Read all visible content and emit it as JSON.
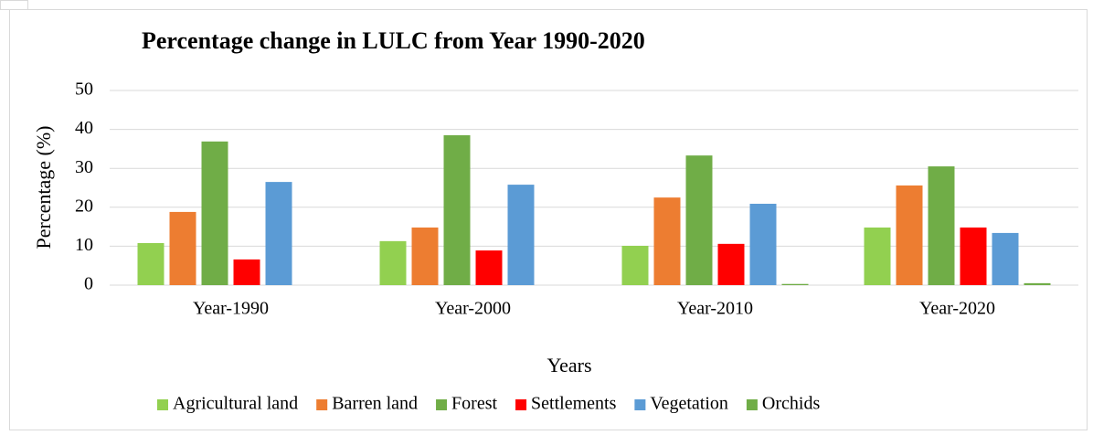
{
  "chart_data": {
    "type": "bar",
    "title": "Percentage change in LULC from Year 1990-2020",
    "x_label": "Years",
    "y_label": "Percentage (%)",
    "categories": [
      "Year-1990",
      "Year-2000",
      "Year-2010",
      "Year-2020"
    ],
    "series": [
      {
        "name": "Agricultural land",
        "color": "#92d050",
        "values": [
          10.8,
          11.3,
          10.1,
          14.8
        ]
      },
      {
        "name": "Barren land",
        "color": "#ed7d31",
        "values": [
          18.8,
          14.8,
          22.5,
          25.6
        ]
      },
      {
        "name": "Forest",
        "color": "#70ad47",
        "values": [
          36.9,
          38.5,
          33.3,
          30.5
        ]
      },
      {
        "name": "Settlements",
        "color": "#ff0000",
        "values": [
          6.6,
          8.9,
          10.6,
          14.8
        ]
      },
      {
        "name": "Vegetation",
        "color": "#5b9bd5",
        "values": [
          26.5,
          25.8,
          20.9,
          13.4
        ]
      },
      {
        "name": "Orchids",
        "color": "#70ad47",
        "values": [
          0,
          0,
          0.3,
          0.5
        ]
      }
    ],
    "ylim": [
      0,
      50
    ],
    "yticks": [
      0,
      10,
      20,
      30,
      40,
      50
    ],
    "grid": true,
    "legend": "bottom"
  }
}
